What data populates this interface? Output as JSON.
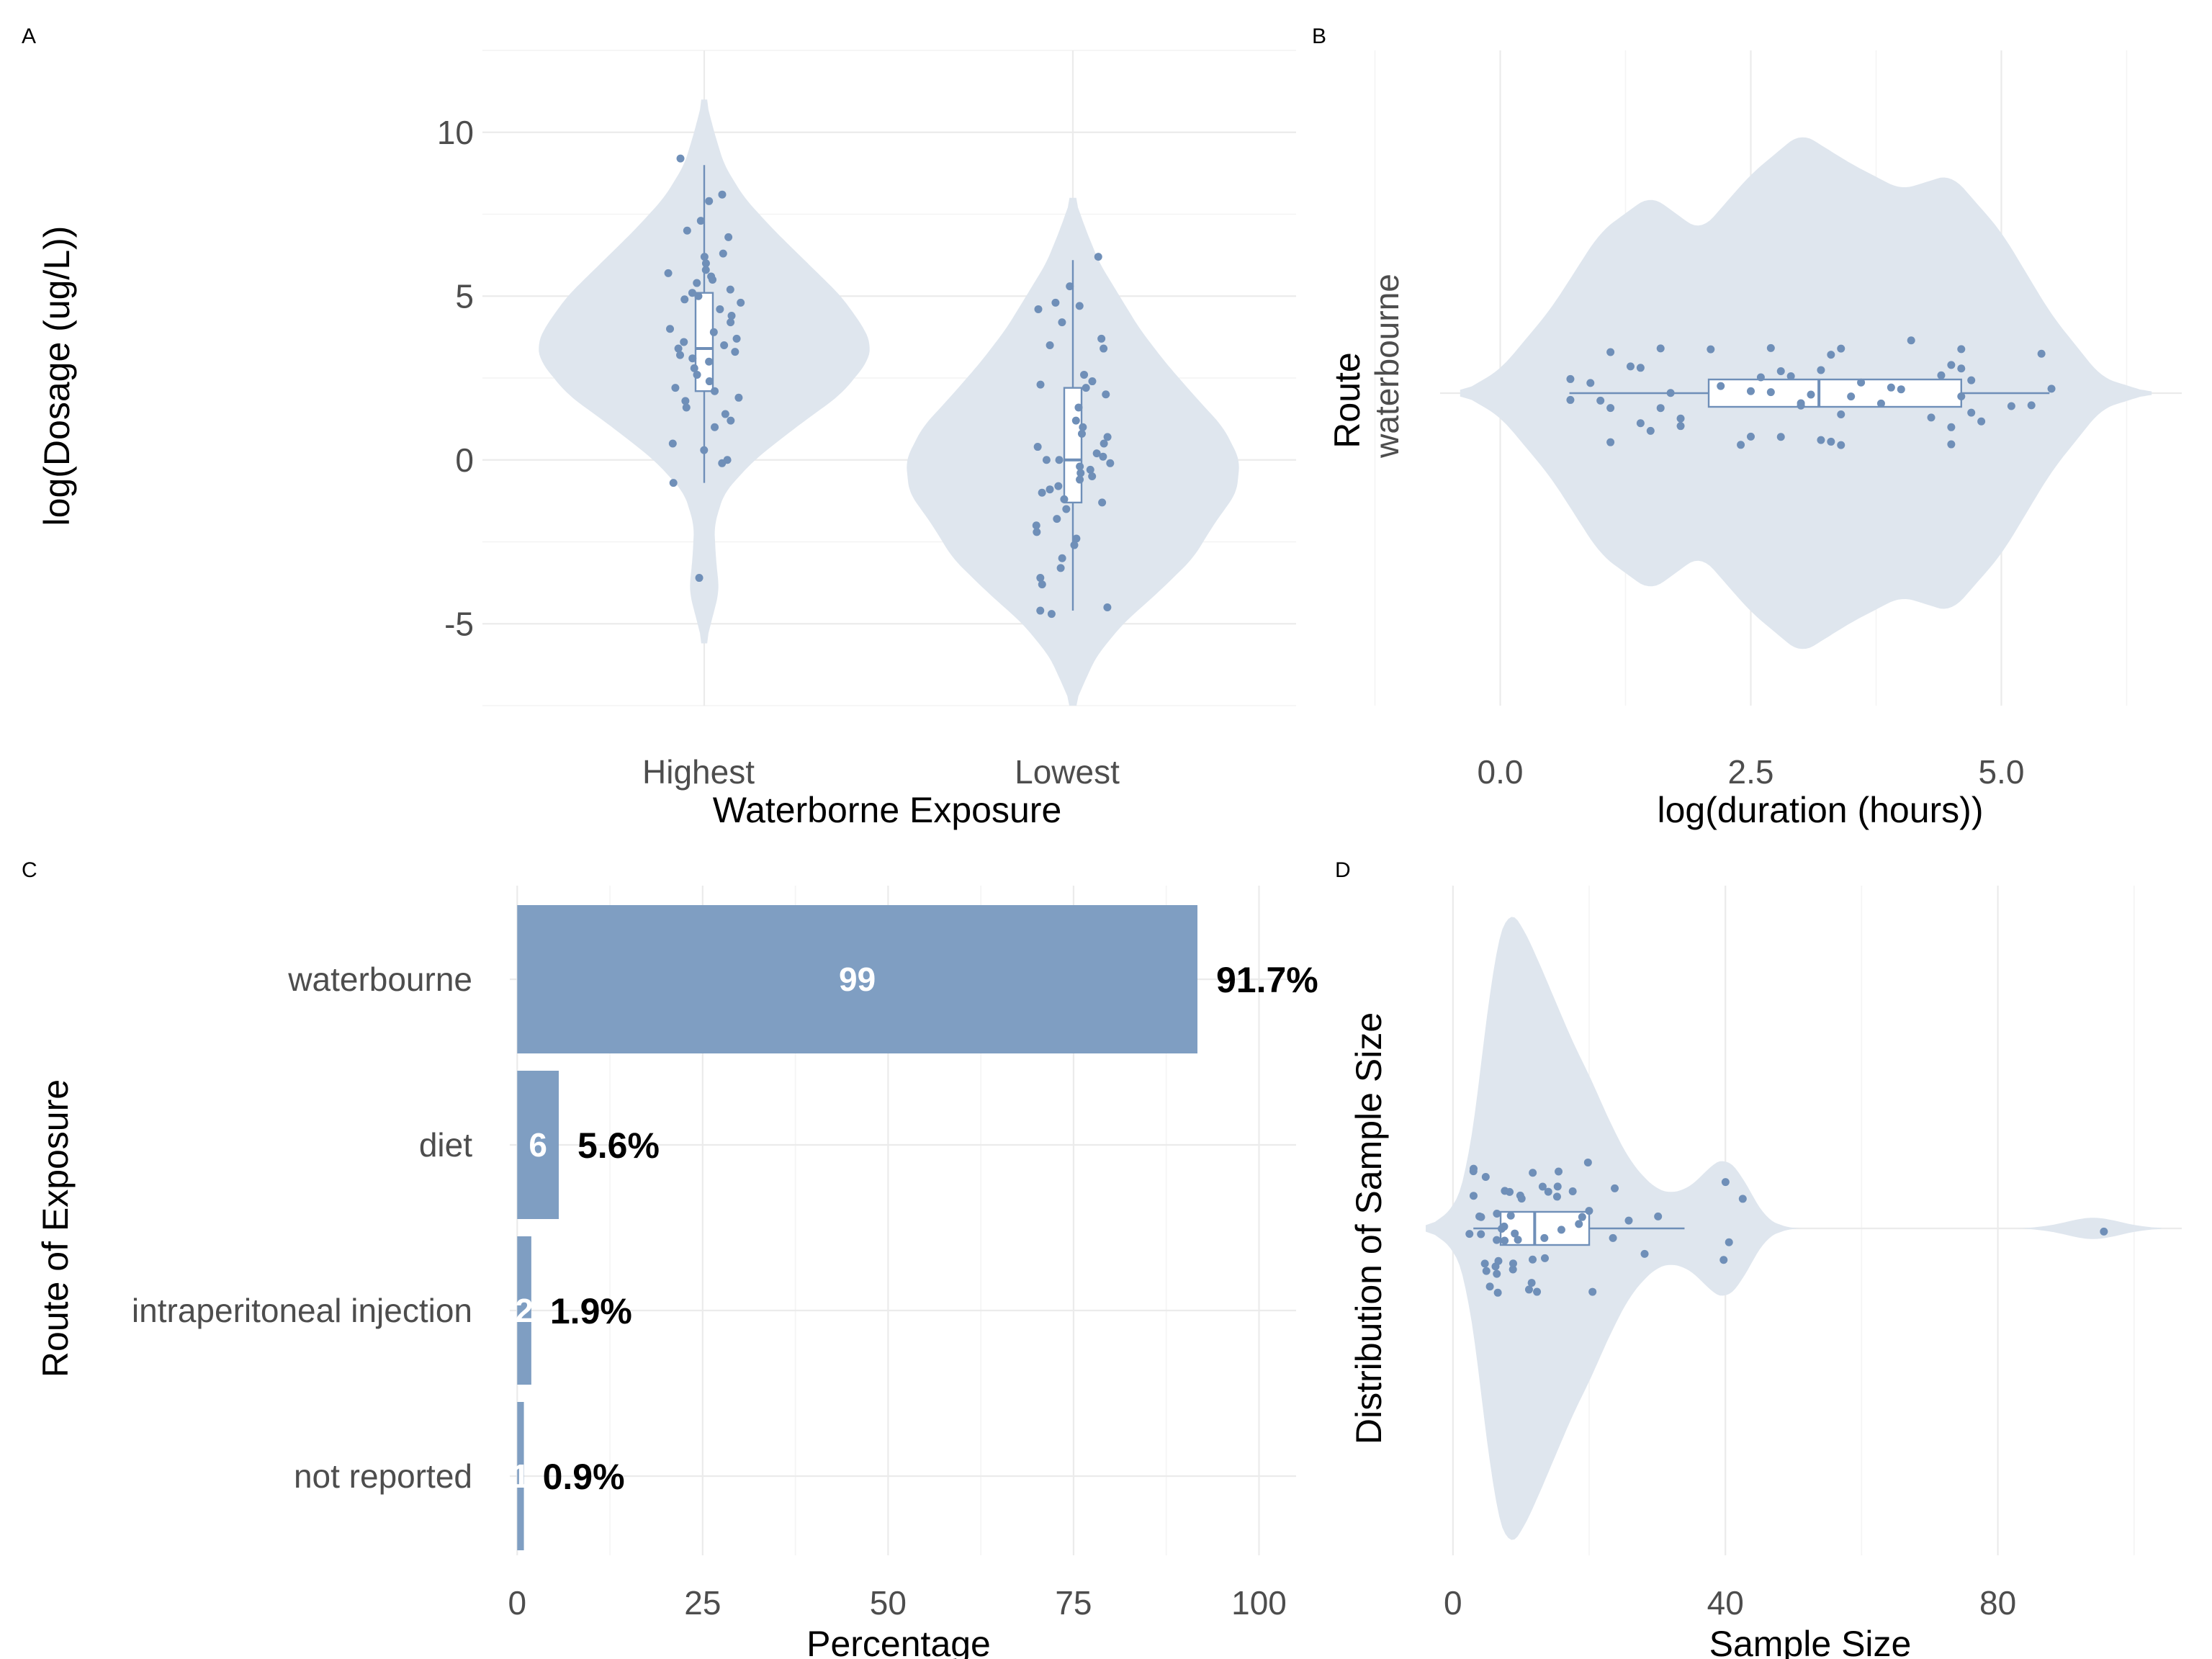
{
  "colors": {
    "violin": "#dfe6ee",
    "point": "#6f8fb8",
    "box_line": "#6f8fb8",
    "bar": "#7f9ec2"
  },
  "chart_data": [
    {
      "panel": "A",
      "type": "violin",
      "xlabel": "Waterborne Exposure",
      "ylabel": "log(Dosage (ug/L))",
      "categories": [
        "Highest",
        "Lowest"
      ],
      "ylim": [
        -7.5,
        12.5
      ],
      "yticks": [
        -5,
        0,
        5,
        10
      ],
      "ytick_labels": [
        "-5",
        "0",
        "5",
        "10"
      ],
      "grid": true,
      "box": [
        {
          "category": "Highest",
          "q1": 2.1,
          "median": 3.4,
          "q3": 5.1,
          "whisker_low": -0.7,
          "whisker_high": 9.0
        },
        {
          "category": "Lowest",
          "q1": -1.3,
          "median": 0.0,
          "q3": 2.2,
          "whisker_low": -4.6,
          "whisker_high": 6.1
        }
      ],
      "violin": [
        {
          "category": "Highest",
          "y": [
            -5.6,
            -5.0,
            -4.0,
            -3.0,
            -2.0,
            -1.0,
            0.0,
            1.0,
            2.0,
            3.0,
            3.5,
            4.0,
            5.0,
            6.0,
            7.0,
            8.0,
            9.0,
            10.0,
            11.0
          ],
          "width": [
            0.01,
            0.04,
            0.09,
            0.07,
            0.06,
            0.12,
            0.3,
            0.55,
            0.82,
            0.98,
            1.0,
            0.96,
            0.82,
            0.62,
            0.42,
            0.24,
            0.12,
            0.06,
            0.01
          ]
        },
        {
          "category": "Lowest",
          "y": [
            -7.5,
            -7.0,
            -6.0,
            -5.0,
            -4.0,
            -3.0,
            -2.0,
            -1.0,
            0.0,
            0.5,
            1.0,
            2.0,
            3.0,
            4.0,
            5.0,
            6.0,
            7.0,
            8.0
          ],
          "width": [
            0.01,
            0.05,
            0.14,
            0.3,
            0.52,
            0.72,
            0.84,
            0.98,
            1.0,
            0.95,
            0.9,
            0.72,
            0.55,
            0.4,
            0.28,
            0.16,
            0.08,
            0.01
          ]
        }
      ],
      "points": [
        {
          "category": "Highest",
          "y": [
            9.2,
            8.1,
            7.9,
            7.3,
            7.0,
            6.8,
            6.3,
            6.2,
            6.0,
            5.8,
            5.7,
            5.6,
            5.5,
            5.4,
            5.2,
            5.1,
            5.0,
            4.9,
            4.8,
            4.6,
            4.4,
            4.2,
            4.0,
            3.9,
            3.7,
            3.6,
            3.5,
            3.4,
            3.3,
            3.2,
            3.1,
            3.0,
            2.8,
            2.6,
            2.4,
            2.2,
            2.1,
            1.9,
            1.8,
            1.6,
            1.4,
            1.2,
            1.0,
            0.5,
            0.3,
            0.0,
            -0.1,
            -0.7,
            -3.6
          ]
        },
        {
          "category": "Lowest",
          "y": [
            6.2,
            5.3,
            4.8,
            4.7,
            4.6,
            4.2,
            3.7,
            3.5,
            3.4,
            2.6,
            2.4,
            2.3,
            2.2,
            2.0,
            1.6,
            1.2,
            1.0,
            0.8,
            0.7,
            0.5,
            0.4,
            0.2,
            0.1,
            0.0,
            0.0,
            -0.1,
            -0.2,
            -0.3,
            -0.4,
            -0.5,
            -0.6,
            -0.8,
            -0.9,
            -1.0,
            -1.2,
            -1.3,
            -1.5,
            -1.8,
            -2.0,
            -2.2,
            -2.4,
            -2.6,
            -3.0,
            -3.3,
            -3.6,
            -3.8,
            -4.5,
            -4.6,
            -4.7
          ]
        }
      ]
    },
    {
      "panel": "B",
      "type": "violin",
      "xlabel": "log(duration (hours))",
      "ylabel": "Route",
      "categories": [
        "waterbourne"
      ],
      "xlim": [
        -0.6,
        6.8
      ],
      "xticks": [
        0,
        2.5,
        5
      ],
      "xtick_labels": [
        "0.0",
        "2.5",
        "5.0"
      ],
      "grid": true,
      "box": {
        "q1": 2.08,
        "median": 3.18,
        "q3": 4.6,
        "whisker_low": 0.69,
        "whisker_high": 5.48
      },
      "violin": {
        "x": [
          -0.4,
          0.0,
          0.5,
          1.0,
          1.5,
          2.0,
          2.5,
          3.0,
          3.5,
          4.0,
          4.5,
          5.0,
          5.5,
          6.0,
          6.5
        ],
        "width": [
          0.0,
          0.09,
          0.32,
          0.62,
          0.76,
          0.62,
          0.84,
          1.0,
          0.88,
          0.78,
          0.84,
          0.62,
          0.3,
          0.06,
          0.0
        ]
      },
      "points": {
        "x": [
          0.7,
          0.7,
          0.9,
          1.0,
          1.1,
          1.1,
          1.1,
          1.3,
          1.4,
          1.4,
          1.5,
          1.6,
          1.6,
          1.7,
          1.8,
          1.8,
          2.1,
          2.2,
          2.4,
          2.5,
          2.5,
          2.6,
          2.7,
          2.7,
          2.8,
          2.8,
          2.9,
          3.0,
          3.0,
          3.1,
          3.2,
          3.2,
          3.3,
          3.3,
          3.4,
          3.4,
          3.4,
          3.5,
          3.6,
          3.8,
          3.9,
          4.0,
          4.1,
          4.3,
          4.4,
          4.5,
          4.5,
          4.5,
          4.6,
          4.6,
          4.6,
          4.7,
          4.7,
          4.8,
          5.1,
          5.3,
          5.4,
          5.5
        ]
      }
    },
    {
      "panel": "C",
      "type": "bar",
      "orientation": "horizontal",
      "xlabel": "Percentage",
      "ylabel": "Route of Exposure",
      "categories": [
        "waterbourne",
        "diet",
        "intraperitoneal injection",
        "not reported"
      ],
      "values": [
        91.7,
        5.6,
        1.9,
        0.9
      ],
      "counts": [
        "99",
        "6",
        "2",
        "1"
      ],
      "value_labels": [
        "91.7%",
        "5.6%",
        "1.9%",
        "0.9%"
      ],
      "xlim": [
        -1,
        105
      ],
      "xticks": [
        0,
        25,
        50,
        75,
        100
      ],
      "xtick_labels": [
        "0",
        "25",
        "50",
        "75",
        "100"
      ],
      "grid": true
    },
    {
      "panel": "D",
      "type": "violin",
      "xlabel": "Sample Size",
      "ylabel": "Distribution of Sample Size",
      "xlim": [
        -4,
        107
      ],
      "xticks": [
        0,
        40,
        80
      ],
      "xtick_labels": [
        "0",
        "40",
        "80"
      ],
      "grid": true,
      "box": {
        "q1": 7,
        "median": 12,
        "q3": 20,
        "whisker_low": 3,
        "whisker_high": 34
      },
      "violin": {
        "x": [
          -4,
          0,
          2,
          4,
          6,
          8,
          10,
          12,
          14,
          16,
          18,
          20,
          22,
          24,
          26,
          28,
          30,
          32,
          34,
          36,
          38,
          40,
          42,
          44,
          46,
          48,
          50,
          55,
          60,
          65,
          70,
          75,
          80,
          84,
          86,
          88,
          90,
          92,
          94,
          96,
          98,
          100,
          102,
          104
        ],
        "width": [
          0.0,
          0.06,
          0.16,
          0.48,
          0.85,
          1.0,
          0.95,
          0.86,
          0.76,
          0.66,
          0.56,
          0.48,
          0.38,
          0.29,
          0.21,
          0.16,
          0.12,
          0.11,
          0.12,
          0.15,
          0.2,
          0.22,
          0.18,
          0.1,
          0.03,
          0.01,
          0.0,
          0.0,
          0.0,
          0.0,
          0.0,
          0.0,
          0.0,
          0.0,
          0.005,
          0.01,
          0.02,
          0.03,
          0.035,
          0.03,
          0.02,
          0.01,
          0.005,
          0.0
        ]
      },
      "points": {
        "x": [
          3,
          3,
          3,
          3,
          4,
          4,
          4,
          5,
          5,
          5,
          5,
          6,
          6,
          6,
          6,
          7,
          7,
          7,
          7,
          8,
          8,
          8,
          8,
          9,
          9,
          9,
          10,
          10,
          10,
          11,
          11,
          12,
          12,
          12,
          13,
          13,
          14,
          14,
          15,
          15,
          16,
          16,
          17,
          18,
          19,
          20,
          20,
          21,
          23,
          24,
          26,
          28,
          30,
          40,
          40,
          40,
          42,
          96
        ]
      }
    }
  ],
  "panels": {
    "A": {
      "label": "A"
    },
    "B": {
      "label": "B"
    },
    "C": {
      "label": "C"
    },
    "D": {
      "label": "D"
    }
  }
}
